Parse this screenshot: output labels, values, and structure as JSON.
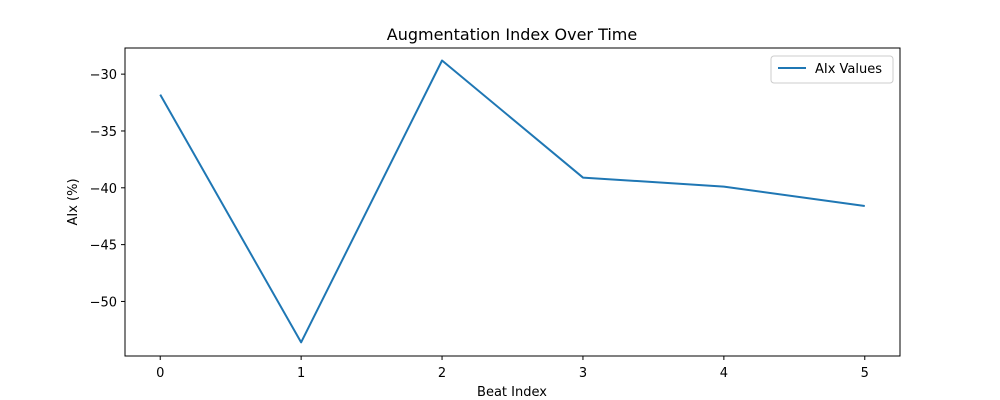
{
  "chart_data": {
    "type": "line",
    "title": "Augmentation Index Over Time",
    "xlabel": "Beat Index",
    "ylabel": "AIx (%)",
    "x": [
      0,
      1,
      2,
      3,
      4,
      5
    ],
    "xlim": [
      -0.25,
      5.25
    ],
    "ylim": [
      -54.8,
      -27.7
    ],
    "x_ticks": [
      0,
      1,
      2,
      3,
      4,
      5
    ],
    "y_ticks": [
      -30,
      -35,
      -40,
      -45,
      -50
    ],
    "x_tick_labels": [
      "0",
      "1",
      "2",
      "3",
      "4",
      "5"
    ],
    "y_tick_labels": [
      "−30",
      "−35",
      "−40",
      "−45",
      "−50"
    ],
    "series": [
      {
        "name": "AIx Values",
        "color": "#1f77b4",
        "values": [
          -31.8,
          -53.6,
          -28.8,
          -39.1,
          -39.9,
          -41.6
        ]
      }
    ],
    "legend": {
      "position": "top-right"
    },
    "grid": false
  }
}
